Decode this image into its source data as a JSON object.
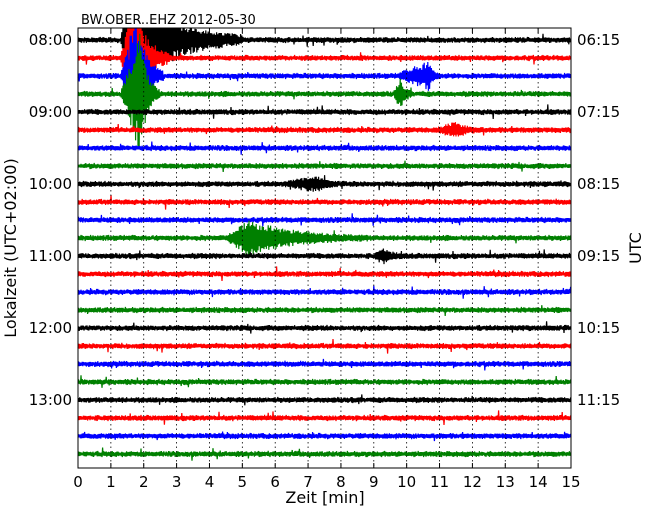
{
  "chart_data": {
    "type": "line",
    "title": "BW.OBER..EHZ 2012-05-30",
    "xlabel": "Zeit  [min]",
    "ylabel_left": "Lokalzeit (UTC+02:00)",
    "ylabel_right": "UTC",
    "xlim": [
      0,
      15
    ],
    "x_ticks": [
      "0",
      "1",
      "2",
      "3",
      "4",
      "5",
      "6",
      "7",
      "8",
      "9",
      "10",
      "11",
      "12",
      "13",
      "14",
      "15"
    ],
    "left_ticks": [
      "08:00",
      "09:00",
      "10:00",
      "11:00",
      "12:00",
      "13:00"
    ],
    "right_ticks": [
      "06:15",
      "07:15",
      "08:15",
      "09:15",
      "10:15",
      "11:15"
    ],
    "traces_per_hour": 4,
    "trace_count": 24,
    "trace_colors": [
      "#000000",
      "#ff0000",
      "#0000ff",
      "#008000"
    ],
    "grid_x": true,
    "events": [
      {
        "trace": 0,
        "start_min": 1.3,
        "peak_min": 1.6,
        "end_min": 5.0,
        "amplitude": "clipped"
      },
      {
        "trace": 1,
        "start_min": 1.3,
        "peak_min": 1.7,
        "end_min": 2.8,
        "amplitude": "clipped"
      },
      {
        "trace": 2,
        "start_min": 1.3,
        "peak_min": 1.8,
        "end_min": 2.6,
        "amplitude": "clipped"
      },
      {
        "trace": 3,
        "start_min": 1.3,
        "peak_min": 1.9,
        "end_min": 2.5,
        "amplitude": "clipped"
      },
      {
        "trace": 2,
        "start_min": 9.7,
        "peak_min": 10.7,
        "end_min": 11.0,
        "amplitude": "medium"
      },
      {
        "trace": 3,
        "start_min": 9.6,
        "peak_min": 9.8,
        "end_min": 10.2,
        "amplitude": "medium"
      },
      {
        "trace": 5,
        "start_min": 10.9,
        "peak_min": 11.5,
        "end_min": 12.4,
        "amplitude": "small"
      },
      {
        "trace": 8,
        "start_min": 6.2,
        "peak_min": 7.3,
        "end_min": 8.0,
        "amplitude": "small"
      },
      {
        "trace": 11,
        "start_min": 4.5,
        "peak_min": 5.2,
        "end_min": 8.8,
        "amplitude": "large"
      },
      {
        "trace": 12,
        "start_min": 9.0,
        "peak_min": 9.3,
        "end_min": 10.0,
        "amplitude": "small"
      }
    ]
  }
}
